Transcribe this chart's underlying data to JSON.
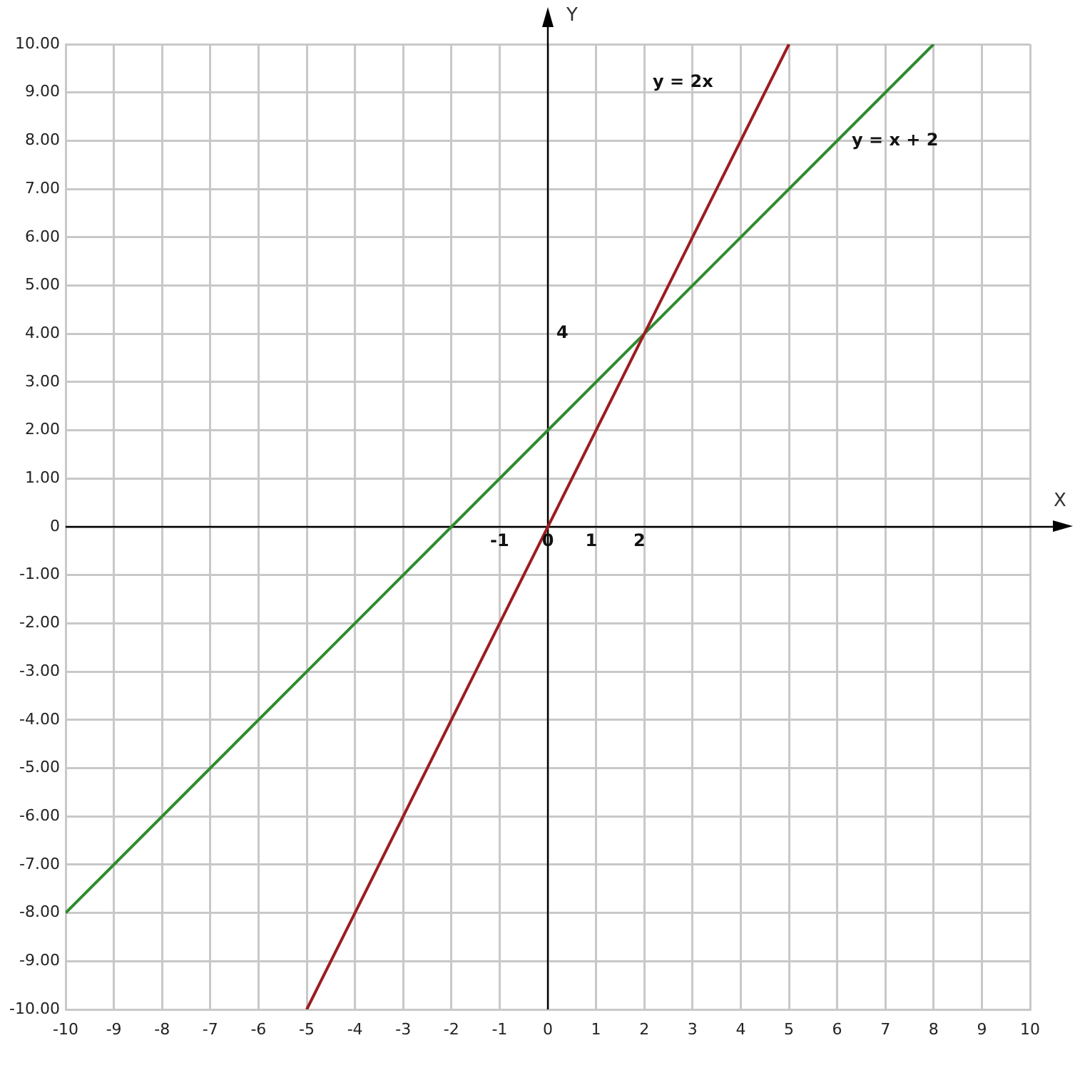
{
  "chart_data": {
    "type": "line",
    "xlabel": "X",
    "ylabel": "Y",
    "xlim": [
      -10,
      10
    ],
    "ylim": [
      -10,
      10
    ],
    "xticks": [
      -10,
      -9,
      -8,
      -7,
      -6,
      -5,
      -4,
      -3,
      -2,
      -1,
      0,
      1,
      2,
      3,
      4,
      5,
      6,
      7,
      8,
      9,
      10
    ],
    "yticks": [
      {
        "value": -10,
        "label": "-10.00"
      },
      {
        "value": -9,
        "label": "-9.00"
      },
      {
        "value": -8,
        "label": "-8.00"
      },
      {
        "value": -7,
        "label": "-7.00"
      },
      {
        "value": -6,
        "label": "-6.00"
      },
      {
        "value": -5,
        "label": "-5.00"
      },
      {
        "value": -4,
        "label": "-4.00"
      },
      {
        "value": -3,
        "label": "-3.00"
      },
      {
        "value": -2,
        "label": "-2.00"
      },
      {
        "value": -1,
        "label": "-1.00"
      },
      0,
      {
        "value": 1,
        "label": "1.00"
      },
      {
        "value": 2,
        "label": "2.00"
      },
      {
        "value": 3,
        "label": "3.00"
      },
      {
        "value": 4,
        "label": "4.00"
      },
      {
        "value": 5,
        "label": "5.00"
      },
      {
        "value": 6,
        "label": "6.00"
      },
      {
        "value": 7,
        "label": "7.00"
      },
      {
        "value": 8,
        "label": "8.00"
      },
      {
        "value": 9,
        "label": "9.00"
      },
      {
        "value": 10,
        "label": "10.00"
      }
    ],
    "series": [
      {
        "name": "y = 2x",
        "color": "#9c1c20",
        "x": [
          -5,
          5
        ],
        "values": [
          -10,
          10
        ]
      },
      {
        "name": "y = x + 2",
        "color": "#2e8b2e",
        "x": [
          -10,
          8
        ],
        "values": [
          -8,
          10
        ]
      }
    ],
    "annotations": [
      "4",
      "-1",
      "0",
      "1",
      "2"
    ],
    "grid": true,
    "legend": false,
    "marker": "none",
    "line_style": "solid"
  }
}
